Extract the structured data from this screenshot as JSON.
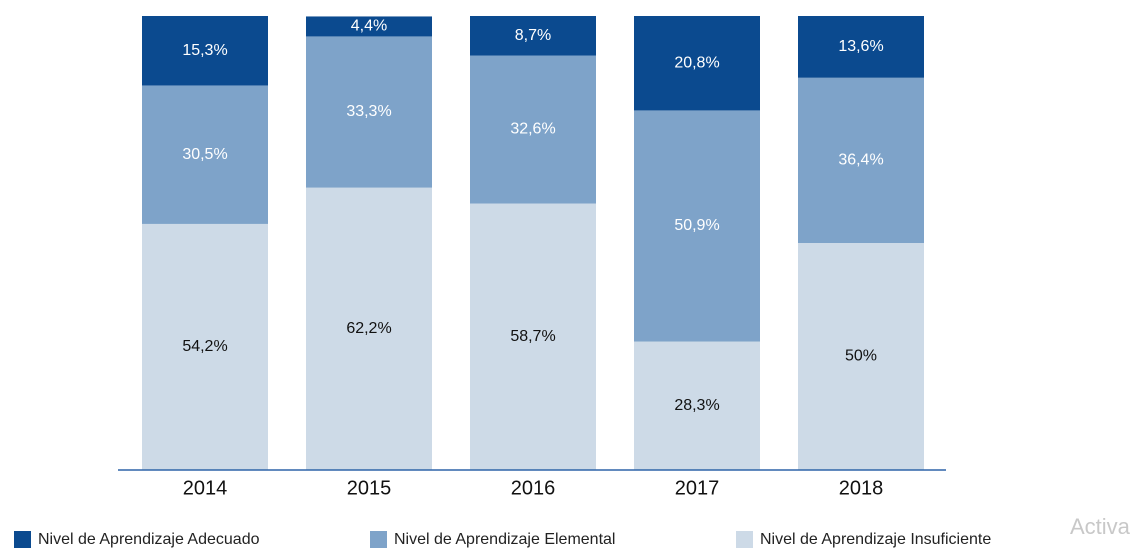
{
  "chart_data": {
    "type": "stacked_bar",
    "categories": [
      "2014",
      "2015",
      "2016",
      "2017",
      "2018"
    ],
    "series": [
      {
        "name": "Nivel de Aprendizaje Insuficiente",
        "color": "#cddae7",
        "values": [
          54.2,
          62.2,
          58.7,
          28.3,
          50
        ],
        "value_labels": [
          "54,2%",
          "62,2%",
          "58,7%",
          "28,3%",
          "50%"
        ]
      },
      {
        "name": "Nivel de Aprendizaje Elemental",
        "color": "#7ea3c9",
        "values": [
          30.5,
          33.3,
          32.6,
          50.9,
          36.4
        ],
        "value_labels": [
          "30,5%",
          "33,3%",
          "32,6%",
          "50,9%",
          "36,4%"
        ]
      },
      {
        "name": "Nivel de Aprendizaje Adecuado",
        "color": "#0b4a8f",
        "values": [
          15.3,
          4.4,
          8.7,
          20.8,
          13.6
        ],
        "value_labels": [
          "15,3%",
          "4,4%",
          "8,7%",
          "20,8%",
          "13,6%"
        ]
      }
    ],
    "legend_order": [
      2,
      1,
      0
    ],
    "ylim": [
      0,
      100
    ],
    "watermark": "Activa"
  }
}
